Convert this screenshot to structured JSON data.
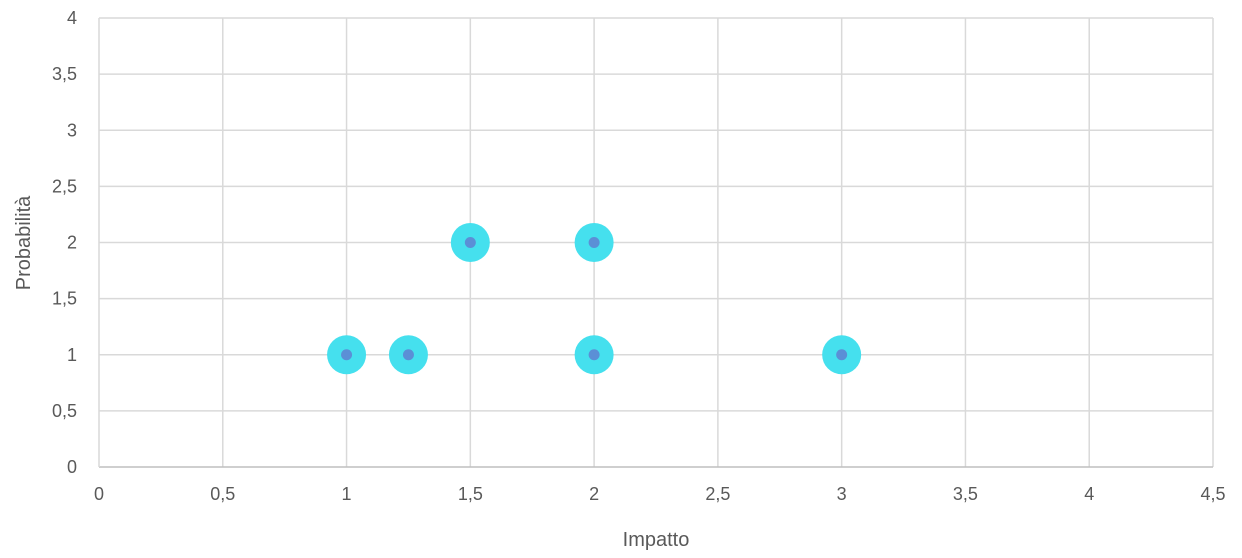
{
  "chart_data": {
    "type": "scatter",
    "title": "",
    "xlabel": "Impatto",
    "ylabel": "Probabilità",
    "xlim": [
      0,
      4.5
    ],
    "ylim": [
      0,
      4
    ],
    "x_ticks": [
      "0",
      "0,5",
      "1",
      "1,5",
      "2",
      "2,5",
      "3",
      "3,5",
      "4",
      "4,5"
    ],
    "y_ticks": [
      "0",
      "0,5",
      "1",
      "1,5",
      "2",
      "2,5",
      "3",
      "3,5",
      "4"
    ],
    "grid": true,
    "legend": "none",
    "series": [
      {
        "points": [
          {
            "x": 1,
            "y": 1
          },
          {
            "x": 1.25,
            "y": 1
          },
          {
            "x": 1.5,
            "y": 2
          },
          {
            "x": 2,
            "y": 2
          },
          {
            "x": 2,
            "y": 1
          },
          {
            "x": 3,
            "y": 1
          }
        ]
      }
    ],
    "colors": {
      "outer_marker": "#45E0EE",
      "inner_marker": "#5B8FD6",
      "grid": "#D9D9D9",
      "text": "#595959"
    }
  }
}
